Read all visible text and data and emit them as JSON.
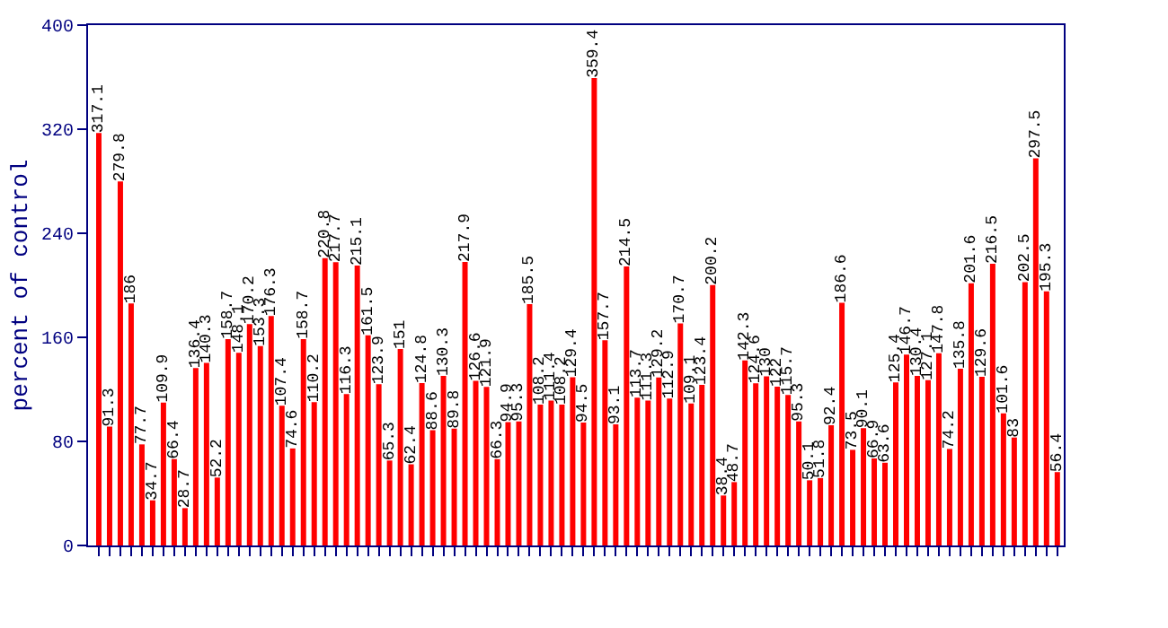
{
  "chart_data": {
    "type": "bar",
    "ylabel": "percent of control",
    "categories": [
      null,
      null,
      null,
      null,
      null,
      null,
      null,
      null,
      null,
      null,
      null,
      null,
      null,
      null,
      null,
      null,
      null,
      null,
      null,
      null,
      null,
      null,
      null,
      null,
      null,
      null,
      null,
      null,
      null,
      null,
      null,
      null,
      null,
      null,
      null,
      null,
      null,
      null,
      null,
      null,
      null,
      null,
      null,
      null,
      null,
      null,
      null,
      null,
      null,
      null,
      null,
      null,
      null,
      null,
      null,
      null,
      null,
      null,
      null,
      null,
      null,
      null,
      null,
      null,
      null,
      null,
      null,
      null,
      null,
      null,
      null,
      null,
      null,
      null,
      null,
      null,
      null,
      null,
      null,
      null,
      null,
      null,
      null,
      null,
      null,
      null,
      null,
      null,
      null,
      null
    ],
    "values": [
      317.1,
      91.3,
      279.8,
      186,
      77.7,
      34.7,
      109.9,
      66.4,
      28.7,
      136.4,
      140.3,
      52.2,
      158.7,
      148.1,
      170.2,
      153.3,
      176.3,
      107.4,
      74.6,
      158.7,
      110.2,
      220.8,
      217.7,
      116.3,
      215.1,
      161.5,
      123.9,
      65.3,
      151,
      62.4,
      124.8,
      88.6,
      130.3,
      89.8,
      217.9,
      126.6,
      121.9,
      66.3,
      94.9,
      95.3,
      185.5,
      108.2,
      111.4,
      108.2,
      129.4,
      94.5,
      359.4,
      157.7,
      93.1,
      214.5,
      113.7,
      111.3,
      129.2,
      112.9,
      170.7,
      109.1,
      123.4,
      200.2,
      38.4,
      48.7,
      142.3,
      124.6,
      130,
      122,
      115.7,
      95.3,
      50.1,
      51.8,
      92.4,
      186.6,
      73.5,
      90.1,
      66.9,
      63.6,
      125.4,
      146.7,
      130.4,
      127.1,
      147.8,
      74.2,
      135.8,
      201.6,
      129.6,
      216.5,
      101.6,
      83,
      202.5,
      297.5,
      195.3,
      56.4
    ],
    "color": "#ff0000",
    "data_labels": true,
    "ylim": [
      0,
      400
    ],
    "yticks": [
      0,
      80,
      160,
      240,
      320,
      400
    ],
    "legend": false
  }
}
